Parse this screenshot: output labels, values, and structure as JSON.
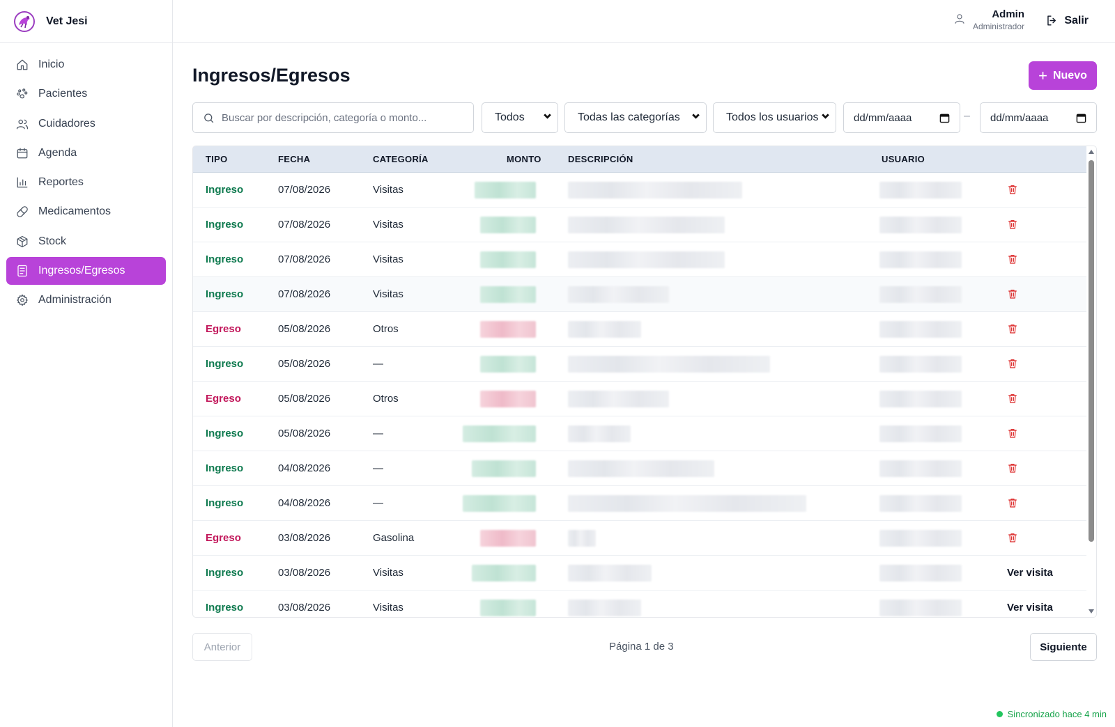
{
  "app": {
    "name": "Vet Jesi"
  },
  "sidebar": {
    "items": [
      {
        "label": "Inicio",
        "icon": "home-icon"
      },
      {
        "label": "Pacientes",
        "icon": "paw-icon"
      },
      {
        "label": "Cuidadores",
        "icon": "users-icon"
      },
      {
        "label": "Agenda",
        "icon": "calendar-icon"
      },
      {
        "label": "Reportes",
        "icon": "bar-chart-icon"
      },
      {
        "label": "Medicamentos",
        "icon": "pill-icon"
      },
      {
        "label": "Stock",
        "icon": "box-icon"
      },
      {
        "label": "Ingresos/Egresos",
        "icon": "receipt-icon",
        "active": true
      },
      {
        "label": "Administración",
        "icon": "gear-icon"
      }
    ]
  },
  "header": {
    "user_name": "Admin",
    "user_role": "Administrador",
    "logout_label": "Salir"
  },
  "main": {
    "title": "Ingresos/Egresos",
    "new_button": "Nuevo"
  },
  "filters": {
    "search_placeholder": "Buscar por descripción, categoría o monto...",
    "tipo": "Todos",
    "categoria": "Todas las categorías",
    "usuario": "Todos los usuarios",
    "date_from": "dd/mm/aaaa",
    "date_to": "dd/mm/aaaa",
    "separator": "–"
  },
  "table": {
    "headers": [
      "TIPO",
      "FECHA",
      "CATEGORÍA",
      "MONTO",
      "DESCRIPCIÓN",
      "USUARIO"
    ],
    "rows": [
      {
        "tipo": "Ingreso",
        "fecha": "07/08/2026",
        "categoria": "Visitas",
        "action": "delete"
      },
      {
        "tipo": "Ingreso",
        "fecha": "07/08/2026",
        "categoria": "Visitas",
        "action": "delete"
      },
      {
        "tipo": "Ingreso",
        "fecha": "07/08/2026",
        "categoria": "Visitas",
        "action": "delete"
      },
      {
        "tipo": "Ingreso",
        "fecha": "07/08/2026",
        "categoria": "Visitas",
        "action": "delete"
      },
      {
        "tipo": "Egreso",
        "fecha": "05/08/2026",
        "categoria": "Otros",
        "action": "delete"
      },
      {
        "tipo": "Ingreso",
        "fecha": "05/08/2026",
        "categoria": "—",
        "action": "delete"
      },
      {
        "tipo": "Egreso",
        "fecha": "05/08/2026",
        "categoria": "Otros",
        "action": "delete"
      },
      {
        "tipo": "Ingreso",
        "fecha": "05/08/2026",
        "categoria": "—",
        "action": "delete"
      },
      {
        "tipo": "Ingreso",
        "fecha": "04/08/2026",
        "categoria": "—",
        "action": "delete"
      },
      {
        "tipo": "Ingreso",
        "fecha": "04/08/2026",
        "categoria": "—",
        "action": "delete"
      },
      {
        "tipo": "Egreso",
        "fecha": "03/08/2026",
        "categoria": "Gasolina",
        "action": "delete"
      },
      {
        "tipo": "Ingreso",
        "fecha": "03/08/2026",
        "categoria": "Visitas",
        "action": "Ver visita"
      },
      {
        "tipo": "Ingreso",
        "fecha": "03/08/2026",
        "categoria": "Visitas",
        "action": "Ver visita"
      }
    ]
  },
  "pagination": {
    "prev_label": "Anterior",
    "page_info": "Página 1 de 3",
    "next_label": "Siguiente"
  },
  "status": {
    "sync_text": "Sincronizado hace 4 min"
  },
  "colors": {
    "accent": "#b843d9",
    "ingreso": "#0f7a4f",
    "egreso": "#c2185b",
    "delete": "#dc2626",
    "sync": "#16a34a"
  }
}
